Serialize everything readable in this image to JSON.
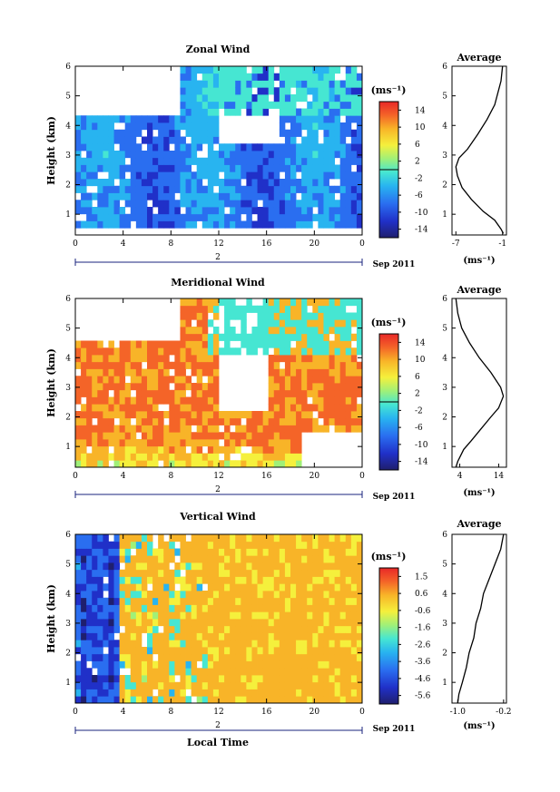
{
  "figure": {
    "units": "(ms⁻¹)",
    "date_label": "Sep 2011",
    "day_label": "2",
    "xlabel": "Local Time",
    "average_title": "Average"
  },
  "chart_data": [
    {
      "type": "heatmap",
      "title": "Zonal Wind",
      "ylabel": "Height (km)",
      "xlabel": "",
      "x_ticks": [
        "0",
        "4",
        "8",
        "12",
        "16",
        "20",
        "0"
      ],
      "xlim_hours": [
        0,
        24
      ],
      "y_ticks": [
        "1",
        "2",
        "3",
        "4",
        "5",
        "6"
      ],
      "ylim_km": [
        0.3,
        6
      ],
      "colorbar_ticks": [
        "14",
        "10",
        "6",
        "2",
        "-2",
        "-6",
        "-10",
        "-14"
      ],
      "colorbar_range": [
        -16,
        16
      ],
      "profile": {
        "title": "Average",
        "x_ticks": [
          "-7",
          "-1"
        ],
        "xlim": [
          -7.5,
          -0.5
        ],
        "x": [
          -1.0,
          -1.2,
          -2.0,
          -3.0,
          -4.2,
          -5.5,
          -6.6,
          -7.0,
          -6.8,
          -6.2,
          -5.0,
          -3.5,
          -2.0,
          -1.2,
          -0.9
        ],
        "y": [
          6.0,
          5.5,
          4.7,
          4.2,
          3.7,
          3.2,
          2.9,
          2.6,
          2.3,
          1.9,
          1.5,
          1.1,
          0.8,
          0.5,
          0.35
        ]
      }
    },
    {
      "type": "heatmap",
      "title": "Meridional Wind",
      "ylabel": "Height (km)",
      "xlabel": "",
      "x_ticks": [
        "0",
        "4",
        "8",
        "12",
        "16",
        "20",
        "0"
      ],
      "xlim_hours": [
        0,
        24
      ],
      "y_ticks": [
        "1",
        "2",
        "3",
        "4",
        "5",
        "6"
      ],
      "ylim_km": [
        0.3,
        6
      ],
      "colorbar_ticks": [
        "14",
        "10",
        "6",
        "2",
        "-2",
        "-6",
        "-10",
        "-14"
      ],
      "colorbar_range": [
        -16,
        16
      ],
      "profile": {
        "title": "Average",
        "x_ticks": [
          "4",
          "14"
        ],
        "xlim": [
          2,
          16
        ],
        "x": [
          3.0,
          3.5,
          4.5,
          6.5,
          9.0,
          12.0,
          14.5,
          15.2,
          14.0,
          12.0,
          9.5,
          7.0,
          5.0,
          3.5,
          3.0
        ],
        "y": [
          6.0,
          5.5,
          5.0,
          4.5,
          4.0,
          3.5,
          3.0,
          2.7,
          2.3,
          2.0,
          1.6,
          1.2,
          0.9,
          0.5,
          0.3
        ]
      }
    },
    {
      "type": "heatmap",
      "title": "Vertical Wind",
      "ylabel": "Height (km)",
      "xlabel": "Local Time",
      "x_ticks": [
        "0",
        "4",
        "8",
        "12",
        "16",
        "20",
        "0"
      ],
      "xlim_hours": [
        0,
        24
      ],
      "y_ticks": [
        "1",
        "2",
        "3",
        "4",
        "5",
        "6"
      ],
      "ylim_km": [
        0.3,
        6
      ],
      "colorbar_ticks": [
        "1.5",
        "0.6",
        "-0.6",
        "-1.6",
        "-2.6",
        "-3.6",
        "-4.6",
        "-5.6"
      ],
      "colorbar_range": [
        -6,
        2
      ],
      "profile": {
        "title": "Average",
        "x_ticks": [
          "-1.0",
          "-0.2"
        ],
        "xlim": [
          -1.1,
          -0.15
        ],
        "x": [
          -0.2,
          -0.25,
          -0.35,
          -0.45,
          -0.55,
          -0.6,
          -0.68,
          -0.72,
          -0.8,
          -0.85,
          -0.92,
          -0.98,
          -1.0
        ],
        "y": [
          6.0,
          5.5,
          5.0,
          4.5,
          4.0,
          3.5,
          3.0,
          2.5,
          2.0,
          1.5,
          1.0,
          0.6,
          0.3
        ]
      }
    }
  ]
}
